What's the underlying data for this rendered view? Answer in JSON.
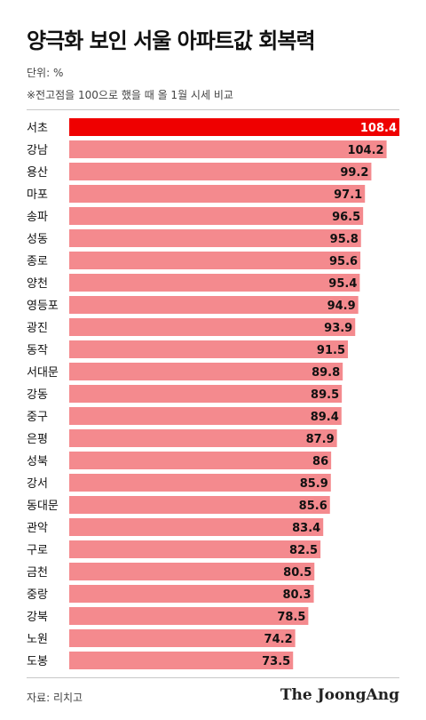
{
  "title": "양극화 보인 서울 아파트값 회복력",
  "unit": "단위: %",
  "note": "※전고점을 100으로 했을 때 올 1월 시세 비교",
  "source": "자료: 리치고",
  "brand": "The JoongAng",
  "colors": {
    "highlight": "#ef0000",
    "bar": "#f48a8e"
  },
  "chart_data": {
    "type": "bar",
    "orientation": "horizontal",
    "title": "양극화 보인 서울 아파트값 회복력",
    "categories": [
      "서초",
      "강남",
      "용산",
      "마포",
      "송파",
      "성동",
      "종로",
      "양천",
      "영등포",
      "광진",
      "동작",
      "서대문",
      "강동",
      "중구",
      "은평",
      "성북",
      "강서",
      "동대문",
      "관악",
      "구로",
      "금천",
      "중랑",
      "강북",
      "노원",
      "도봉"
    ],
    "values": [
      108.4,
      104.2,
      99.2,
      97.1,
      96.5,
      95.8,
      95.6,
      95.4,
      94.9,
      93.9,
      91.5,
      89.8,
      89.5,
      89.4,
      87.9,
      86,
      85.9,
      85.6,
      83.4,
      82.5,
      80.5,
      80.3,
      78.5,
      74.2,
      73.5
    ],
    "labels": [
      "108.4",
      "104.2",
      "99.2",
      "97.1",
      "96.5",
      "95.8",
      "95.6",
      "95.4",
      "94.9",
      "93.9",
      "91.5",
      "89.8",
      "89.5",
      "89.4",
      "87.9",
      "86",
      "85.9",
      "85.6",
      "83.4",
      "82.5",
      "80.5",
      "80.3",
      "78.5",
      "74.2",
      "73.5"
    ],
    "highlight_index": 0,
    "xlim": [
      0,
      108.4
    ],
    "grid": false,
    "legend": "none"
  }
}
